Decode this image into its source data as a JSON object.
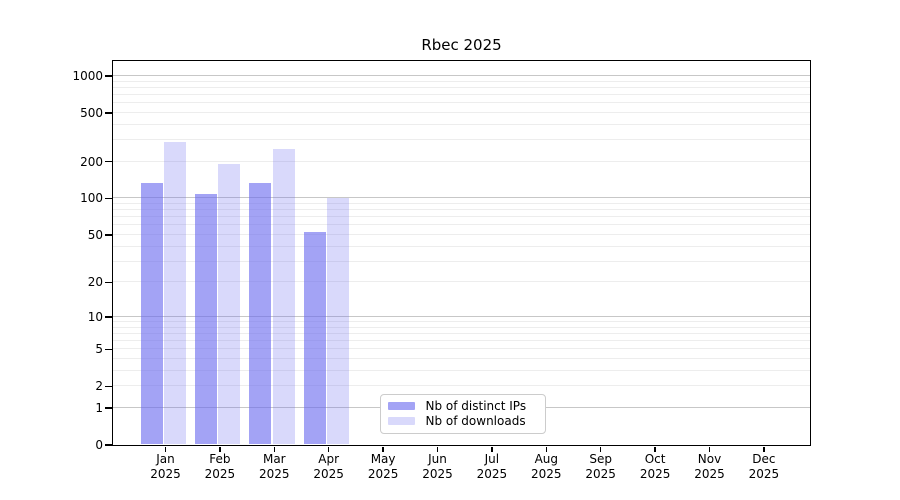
{
  "title": "Rbec 2025",
  "chart_data": {
    "type": "bar",
    "title": "Rbec 2025",
    "categories": [
      "Jan",
      "Feb",
      "Mar",
      "Apr",
      "May",
      "Jun",
      "Jul",
      "Aug",
      "Sep",
      "Oct",
      "Nov",
      "Dec"
    ],
    "year": "2025",
    "series": [
      {
        "name": "Nb of distinct IPs",
        "color": "rgba(102,102,238,0.60)",
        "values": [
          132,
          107,
          132,
          52,
          0,
          0,
          0,
          0,
          0,
          0,
          0,
          0
        ]
      },
      {
        "name": "Nb of downloads",
        "color": "rgba(102,102,238,0.25)",
        "values": [
          285,
          188,
          250,
          100,
          0,
          0,
          0,
          0,
          0,
          0,
          0,
          0
        ]
      }
    ],
    "yscale": "log1p",
    "ytick_values": [
      1000,
      500,
      200,
      100,
      50,
      20,
      10,
      5,
      2,
      1,
      0
    ],
    "ytick_labels": [
      "1000",
      "500",
      "200",
      "100",
      "50",
      "20",
      "10",
      "5",
      "2",
      "1",
      "0"
    ],
    "ylim": [
      0,
      1320
    ],
    "grid": "horizontal",
    "legend_position": "lower-center-inside",
    "xlabel": "",
    "ylabel": ""
  },
  "colors": {
    "bar_distinct_ips": "rgba(102,102,238,0.60)",
    "bar_downloads": "rgba(102,102,238,0.25)",
    "major_grid": "#c7c7c7",
    "minor_grid": "#ededed",
    "axis": "#000000",
    "background": "#ffffff",
    "legend_border": "#cccccc"
  }
}
